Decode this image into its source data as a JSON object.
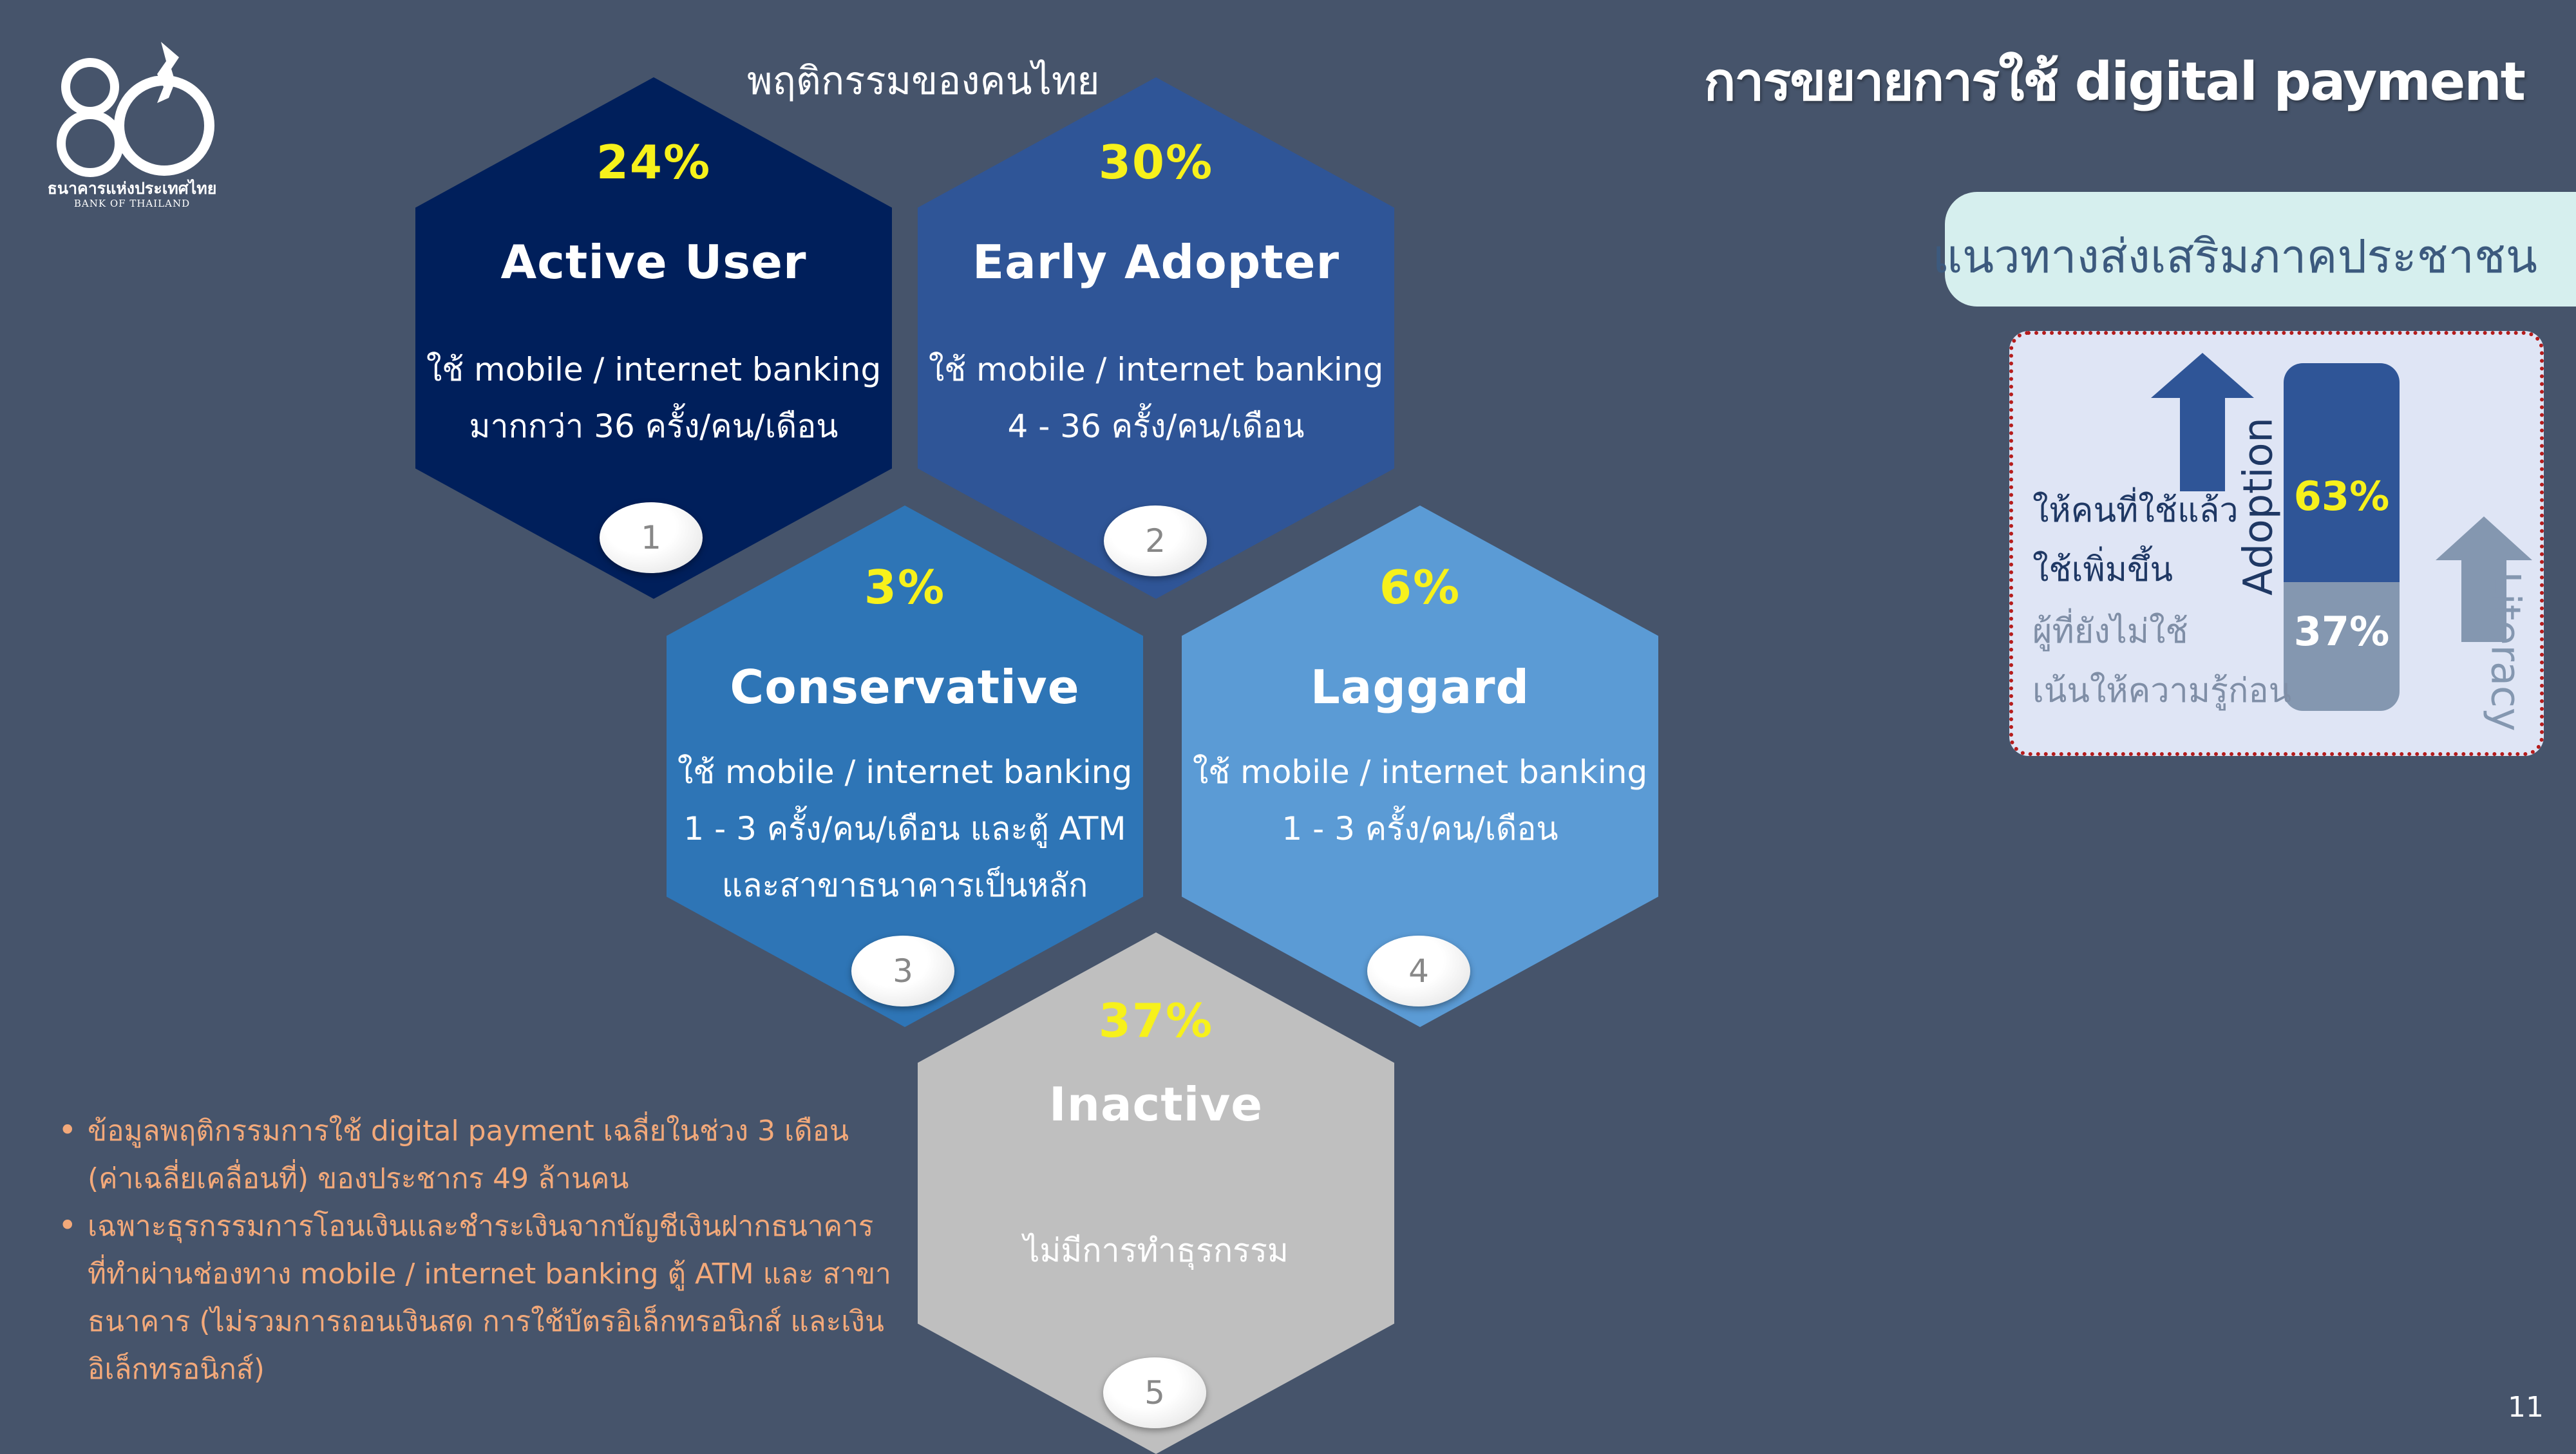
{
  "logo": {
    "mark": "80",
    "org_th": "ธนาคารแห่งประเทศไทย",
    "org_en": "BANK OF THAILAND"
  },
  "title": "การขยายการใช้ digital payment",
  "hex_heading": "พฤติกรรมของคนไทย",
  "segments": [
    {
      "percent": "24%",
      "name": "Active User",
      "desc": [
        "ใช้ mobile / internet banking",
        "มากกว่า 36 ครั้ง/คน/เดือน"
      ],
      "badge": "1",
      "color": "#001f5b"
    },
    {
      "percent": "30%",
      "name": "Early Adopter",
      "desc": [
        "ใช้ mobile / internet banking",
        "4 - 36 ครั้ง/คน/เดือน"
      ],
      "badge": "2",
      "color": "#2f5597"
    },
    {
      "percent": "3%",
      "name": "Conservative",
      "desc": [
        "ใช้ mobile / internet banking",
        "1 - 3 ครั้ง/คน/เดือน และตู้ ATM",
        "และสาขาธนาคารเป็นหลัก"
      ],
      "badge": "3",
      "color": "#2e75b6"
    },
    {
      "percent": "6%",
      "name": "Laggard",
      "desc": [
        "ใช้ mobile / internet banking",
        "1 - 3 ครั้ง/คน/เดือน"
      ],
      "badge": "4",
      "color": "#5b9bd5"
    },
    {
      "percent": "37%",
      "name": "Inactive",
      "desc": [
        "ไม่มีการทำธุรกรรม"
      ],
      "badge": "5",
      "color": "#bfbfbf"
    }
  ],
  "promotion": {
    "heading": "แนวทางส่งเสริมภาคประชาชน",
    "adoption_label": "Adoption",
    "literacy_label": "Literacy",
    "adoption_percent": "63%",
    "literacy_percent": "37%",
    "adoption_share": 0.63,
    "adoption_text": [
      "ให้คนที่ใช้แล้ว",
      "ใช้เพิ่มขึ้น"
    ],
    "literacy_text": [
      "ผู้ที่ยังไม่ใช้",
      "เน้นให้ความรู้ก่อน"
    ],
    "adoption_color": "#2f5597",
    "literacy_color": "#8497b0"
  },
  "notes": [
    [
      "ข้อมูลพฤติกรรมการใช้ digital payment เฉลี่ยในช่วง  3 เดือน",
      "(ค่าเฉลี่ยเคลื่อนที่) ของประชากร 49 ล้านคน"
    ],
    [
      "เฉพาะธุรกรรมการโอนเงินและชำระเงินจากบัญชีเงินฝากธนาคาร",
      "ที่ทำผ่านช่องทาง mobile / internet banking ตู้ ATM และ สาขา",
      "ธนาคาร (ไม่รวมการถอนเงินสด การใช้บัตรอิเล็กทรอนิกส์ และเงิน",
      "อิเล็กทรอนิกส์)"
    ]
  ],
  "page_number": "11"
}
